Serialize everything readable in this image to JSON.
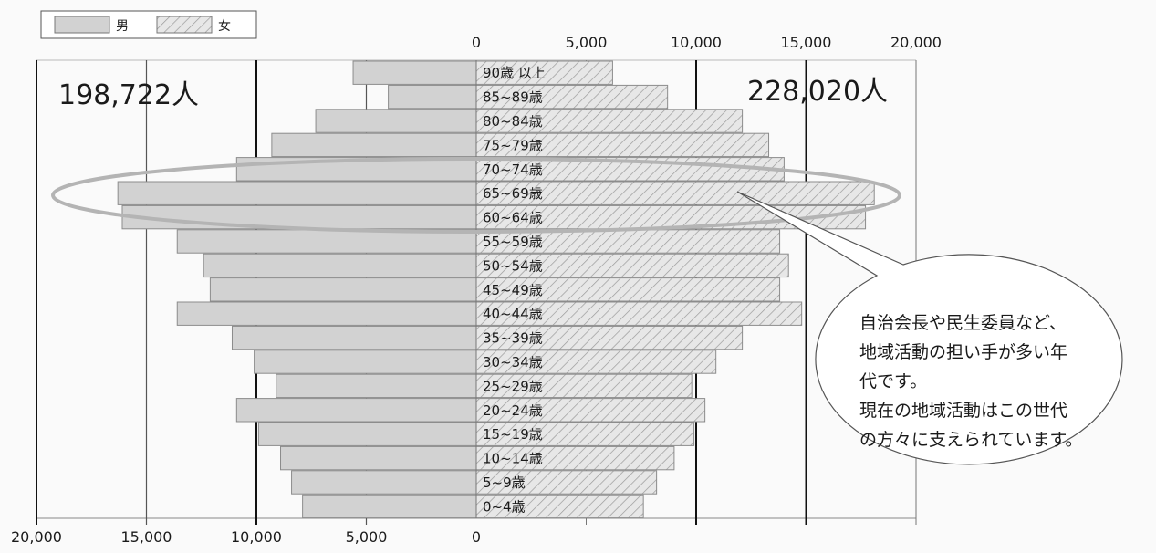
{
  "chart_data": {
    "type": "bar",
    "subtype": "population-pyramid",
    "legend": {
      "placement": "top-left",
      "items": [
        {
          "key": "male",
          "label": "男"
        },
        {
          "key": "female",
          "label": "女"
        }
      ]
    },
    "totals": {
      "male": "198,722人",
      "female": "228,020人"
    },
    "x_top_ticks": [
      "0",
      "5,000",
      "10,000",
      "15,000",
      "20,000"
    ],
    "x_bottom_ticks": [
      "20,000",
      "15,000",
      "10,000",
      "5,000",
      "0"
    ],
    "xlim": [
      0,
      20000
    ],
    "categories": [
      "90歳 以上",
      "85~89歳",
      "80~84歳",
      "75~79歳",
      "70~74歳",
      "65~69歳",
      "60~64歳",
      "55~59歳",
      "50~54歳",
      "45~49歳",
      "40~44歳",
      "35~39歳",
      "30~34歳",
      "25~29歳",
      "20~24歳",
      "15~19歳",
      "10~14歳",
      "5~9歳",
      "0~4歳"
    ],
    "series": [
      {
        "name": "男",
        "key": "male",
        "values": [
          5600,
          4000,
          7300,
          9300,
          10900,
          16300,
          16100,
          13600,
          12400,
          12100,
          13600,
          11100,
          10100,
          9100,
          10900,
          9900,
          8900,
          8400,
          7900
        ]
      },
      {
        "name": "女",
        "key": "female",
        "values": [
          6200,
          8700,
          12100,
          13300,
          14000,
          18100,
          17700,
          13800,
          14200,
          13800,
          14800,
          12100,
          10900,
          9800,
          10400,
          9900,
          9000,
          8200,
          7600
        ]
      }
    ],
    "annotation": {
      "highlight": [
        "65~69歳",
        "60~64歳"
      ],
      "callout_lines": [
        "自治会長や民生委員など、",
        "地域活動の担い手が多い年",
        "代です。",
        "現在の地域活動はこの世代",
        "の方々に支えられています。"
      ]
    },
    "colors": {
      "male": "#d2d2d2",
      "female": "#e6e6e6",
      "hatch": "#9a9a9a",
      "ellipse": "#b0b0b0",
      "axis": "#111111"
    }
  }
}
